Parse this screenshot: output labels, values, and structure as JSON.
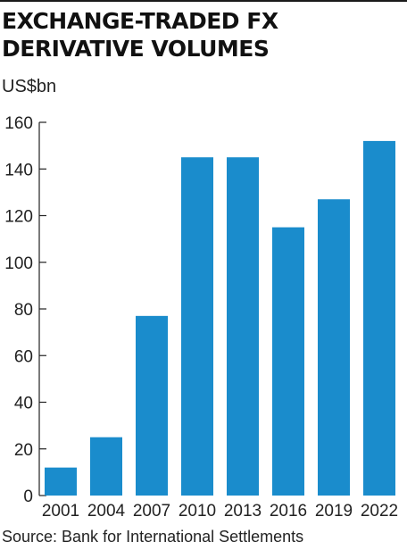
{
  "header": {
    "title_line1": "EXCHANGE-TRADED FX",
    "title_line2": "DERIVATIVE VOLUMES",
    "unit": "US$bn"
  },
  "footer": {
    "source": "Source: Bank for International Settlements"
  },
  "chart_data": {
    "type": "bar",
    "title": "EXCHANGE-TRADED FX DERIVATIVE VOLUMES",
    "ylabel": "US$bn",
    "xlabel": "",
    "categories": [
      "2001",
      "2004",
      "2007",
      "2010",
      "2013",
      "2016",
      "2019",
      "2022"
    ],
    "values": [
      12,
      25,
      77,
      145,
      145,
      115,
      127,
      152
    ],
    "ylim": [
      0,
      160
    ],
    "yticks": [
      0,
      20,
      40,
      60,
      80,
      100,
      120,
      140,
      160
    ],
    "grid": false,
    "legend": "none",
    "bar_color": "#1a8ccc",
    "axis_color": "#222222"
  }
}
